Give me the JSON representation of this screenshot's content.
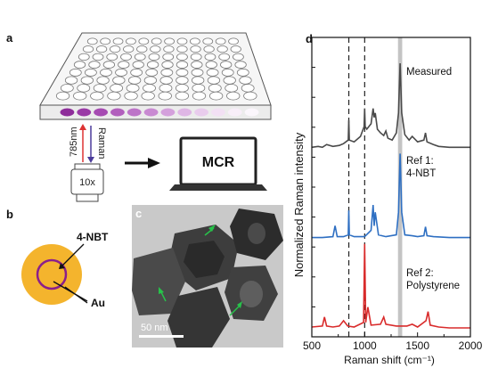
{
  "panels": {
    "a": "a",
    "b": "b",
    "c": "c",
    "d": "d"
  },
  "panel_a": {
    "excitation_label": "785nm",
    "raman_label": "Raman",
    "objective_label": "10x",
    "laptop_label": "MCR",
    "well_colors": [
      "#8e2d9a",
      "#9a3aa6",
      "#a64bb2",
      "#b25fbd",
      "#bd74c8",
      "#c98ad2",
      "#d4a0dc",
      "#dfb6e5",
      "#e9cced",
      "#f2e0f4",
      "#f8eef9",
      "#fbf6fc"
    ]
  },
  "panel_b": {
    "shell_label": "4-NBT",
    "core_label": "Au",
    "shell_color": "#f4b42d",
    "ring_color": "#8b1f8b"
  },
  "panel_c": {
    "scale_bar_label": "50 nm"
  },
  "chart_data": {
    "type": "line",
    "xlabel": "Raman shift (cm⁻¹)",
    "ylabel": "Normalized Raman intensity",
    "xlim": [
      500,
      2000
    ],
    "xticks": [
      "500",
      "1000",
      "1500",
      "2000"
    ],
    "dashed_lines_x": [
      850,
      1000
    ],
    "highlight_band_x": [
      1315,
      1355
    ],
    "series": [
      {
        "name": "Measured",
        "color": "#4a4a4a",
        "offset": 2.0,
        "x": [
          500,
          560,
          600,
          640,
          700,
          760,
          800,
          845,
          850,
          855,
          900,
          960,
          995,
          1000,
          1005,
          1020,
          1060,
          1080,
          1090,
          1100,
          1120,
          1150,
          1180,
          1200,
          1220,
          1260,
          1300,
          1320,
          1335,
          1350,
          1380,
          1420,
          1450,
          1500,
          1560,
          1575,
          1590,
          1650,
          1700,
          1800,
          1900,
          2000
        ],
        "y": [
          0.02,
          0.03,
          0.02,
          0.05,
          0.03,
          0.04,
          0.06,
          0.1,
          0.32,
          0.1,
          0.08,
          0.14,
          0.25,
          0.45,
          0.25,
          0.22,
          0.28,
          0.45,
          0.35,
          0.4,
          0.22,
          0.18,
          0.15,
          0.2,
          0.12,
          0.1,
          0.18,
          0.4,
          0.95,
          0.4,
          0.16,
          0.1,
          0.14,
          0.08,
          0.1,
          0.18,
          0.08,
          0.05,
          0.03,
          0.02,
          0.02,
          0.02
        ]
      },
      {
        "name": "Ref 1:\n4-NBT",
        "color": "#2e6fc2",
        "offset": 1.0,
        "x": [
          500,
          600,
          700,
          720,
          740,
          800,
          845,
          850,
          855,
          900,
          1000,
          1060,
          1080,
          1090,
          1100,
          1130,
          1200,
          1300,
          1320,
          1335,
          1350,
          1380,
          1450,
          1500,
          1560,
          1575,
          1590,
          1650,
          1800,
          2000
        ],
        "y": [
          0.02,
          0.02,
          0.03,
          0.15,
          0.03,
          0.03,
          0.05,
          0.32,
          0.05,
          0.03,
          0.03,
          0.1,
          0.38,
          0.15,
          0.3,
          0.05,
          0.03,
          0.05,
          0.3,
          0.95,
          0.3,
          0.05,
          0.04,
          0.03,
          0.04,
          0.14,
          0.04,
          0.03,
          0.02,
          0.02
        ]
      },
      {
        "name": "Ref 2:\nPolystyrene",
        "color": "#d92b2b",
        "offset": 0.0,
        "x": [
          500,
          600,
          620,
          640,
          700,
          760,
          800,
          840,
          900,
          990,
          1000,
          1010,
          1030,
          1060,
          1150,
          1180,
          1200,
          1300,
          1400,
          1450,
          1500,
          1580,
          1600,
          1620,
          1700,
          1800,
          2000
        ],
        "y": [
          0.03,
          0.04,
          0.14,
          0.04,
          0.03,
          0.04,
          0.1,
          0.04,
          0.03,
          0.08,
          0.95,
          0.08,
          0.25,
          0.05,
          0.06,
          0.14,
          0.06,
          0.04,
          0.04,
          0.06,
          0.03,
          0.1,
          0.2,
          0.05,
          0.03,
          0.02,
          0.02
        ]
      }
    ]
  }
}
